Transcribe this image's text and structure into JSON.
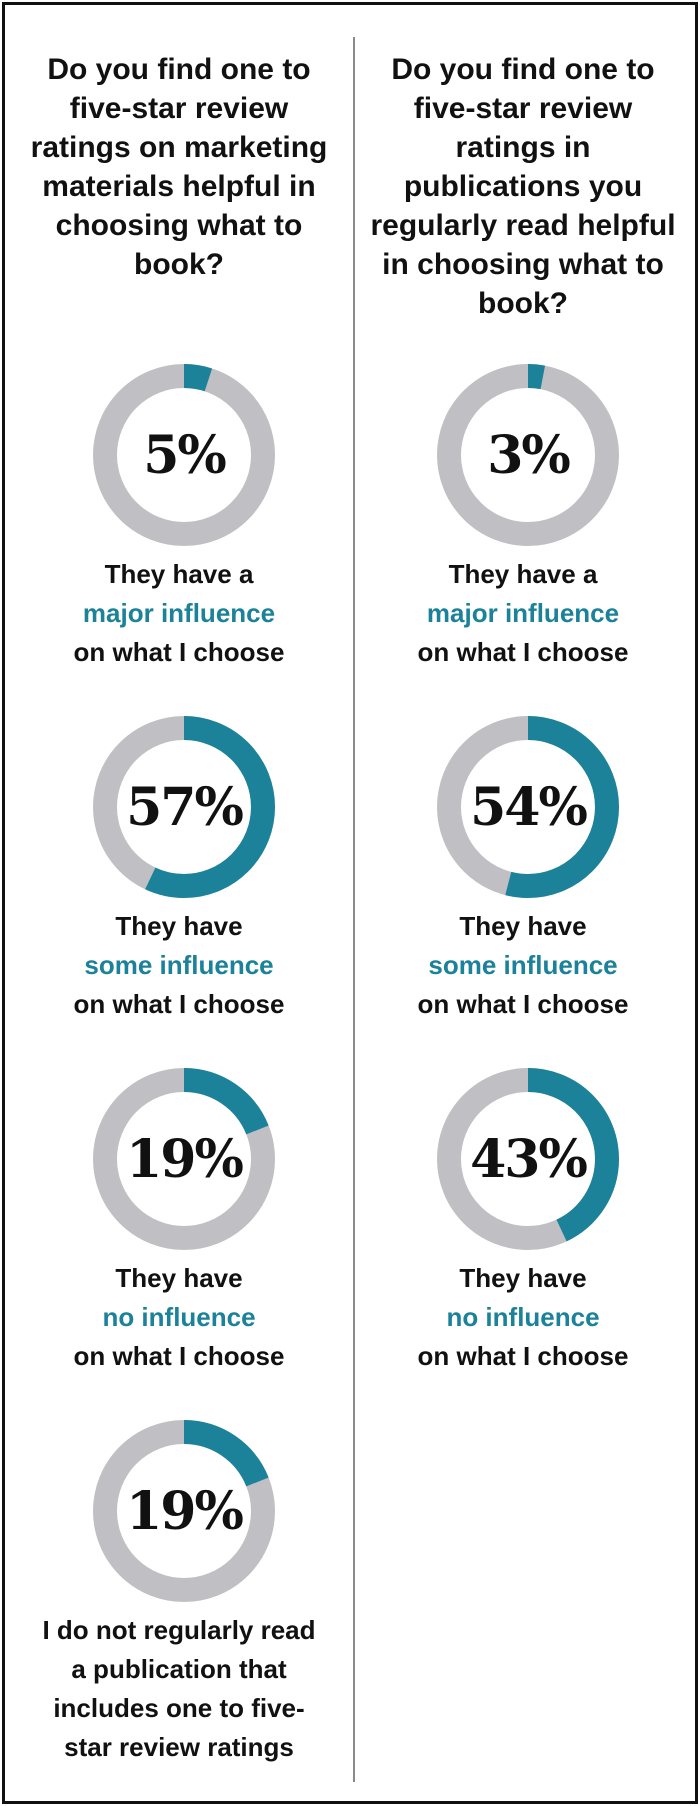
{
  "colors": {
    "accent": "#1b8299",
    "track": "#c0c0c4",
    "text": "#111111"
  },
  "columns": [
    {
      "question": "Do you find one to five-star review ratings on marketing materials helpful in choosing what to book?",
      "items": [
        {
          "pct_label": "5%",
          "caption_l1": "They have a",
          "caption_em": "major influence",
          "caption_l3": "on what I choose"
        },
        {
          "pct_label": "57%",
          "caption_l1": "They have",
          "caption_em": "some influence",
          "caption_l3": "on what I choose"
        },
        {
          "pct_label": "19%",
          "caption_l1": "They have",
          "caption_em": "no influence",
          "caption_l3": "on what I choose"
        },
        {
          "pct_label": "19%",
          "caption_l1": "I do not regularly read",
          "caption_em": "a publication that",
          "caption_l3": "includes one to five-",
          "caption_l4": "star review ratings"
        }
      ]
    },
    {
      "question": "Do you find one to five-star review ratings in publications you regularly read helpful in choosing what to book?",
      "items": [
        {
          "pct_label": "3%",
          "caption_l1": "They have a",
          "caption_em": "major influence",
          "caption_l3": "on what I choose"
        },
        {
          "pct_label": "54%",
          "caption_l1": "They have",
          "caption_em": "some influence",
          "caption_l3": "on what I choose"
        },
        {
          "pct_label": "43%",
          "caption_l1": "They have",
          "caption_em": "no influence",
          "caption_l3": "on what I choose"
        }
      ]
    }
  ],
  "chart_data": [
    {
      "type": "pie",
      "title": "Do you find one to five-star review ratings on marketing materials helpful in choosing what to book?",
      "categories": [
        "They have a major influence on what I choose",
        "They have some influence on what I choose",
        "They have no influence on what I choose",
        "I do not regularly read a publication that includes one to five-star review ratings"
      ],
      "values": [
        5,
        57,
        19,
        19
      ]
    },
    {
      "type": "pie",
      "title": "Do you find one to five-star review ratings in publications you regularly read helpful in choosing what to book?",
      "categories": [
        "They have a major influence on what I choose",
        "They have some influence on what I choose",
        "They have no influence on what I choose"
      ],
      "values": [
        3,
        54,
        43
      ]
    }
  ]
}
